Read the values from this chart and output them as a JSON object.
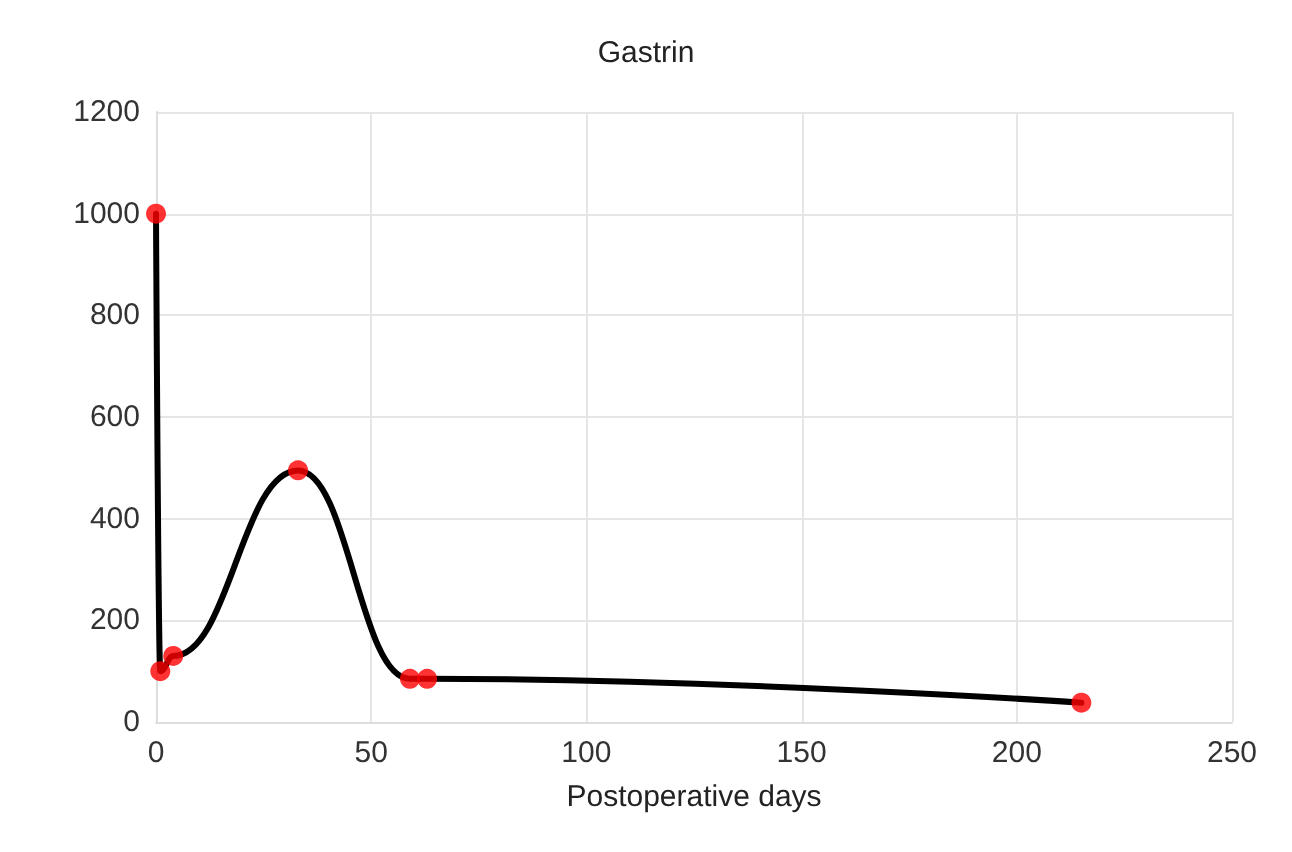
{
  "chart_data": {
    "type": "line",
    "title": "Gastrin",
    "xlabel": "Postoperative days",
    "x": [
      0,
      1,
      4,
      33,
      59,
      63,
      215
    ],
    "series": [
      {
        "color": "#000000",
        "marker": "none",
        "values": [
          1000,
          100,
          130,
          495,
          85,
          85,
          38
        ]
      },
      {
        "type": "scatter",
        "color": "#ff0000",
        "marker": "circle",
        "values": [
          1000,
          100,
          130,
          495,
          85,
          85,
          38
        ]
      }
    ],
    "xlim": [
      0,
      250
    ],
    "xticks": [
      0,
      50,
      100,
      150,
      200,
      250
    ],
    "ylim": [
      0,
      1200
    ],
    "yticks": [
      0,
      200,
      400,
      600,
      800,
      1000,
      1200
    ],
    "grid": true,
    "line_style": "solid"
  }
}
